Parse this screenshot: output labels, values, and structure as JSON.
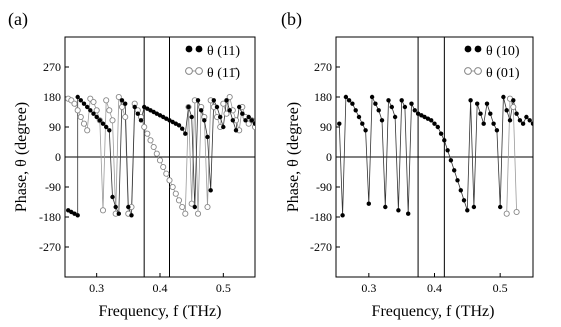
{
  "figure": {
    "panels": [
      "(a)",
      "(b)"
    ]
  },
  "chart_data": [
    {
      "type": "scatter",
      "panel": "(a)",
      "xlabel": "Frequency, f (THz)",
      "ylabel": "Phase, θ (degree)",
      "xlim": [
        0.25,
        0.55
      ],
      "ylim": [
        -360,
        360
      ],
      "xticks": [
        "0.3",
        "0.4",
        "0.5"
      ],
      "yticks": [
        "270",
        "180",
        "90",
        "0",
        "-90",
        "-180",
        "-270"
      ],
      "vlines": [
        0.375,
        0.415
      ],
      "legend": {
        "position": "top-right",
        "entries": [
          "θ (11)",
          "θ (11̄)"
        ]
      },
      "series": [
        {
          "name": "θ (11)",
          "marker": "filled",
          "x": [
            0.255,
            0.26,
            0.265,
            0.27,
            0.27,
            0.275,
            0.28,
            0.285,
            0.29,
            0.295,
            0.3,
            0.305,
            0.31,
            0.315,
            0.32,
            0.325,
            0.33,
            0.335,
            0.34,
            0.345,
            0.35,
            0.355,
            0.36,
            0.365,
            0.37,
            0.375,
            0.38,
            0.385,
            0.39,
            0.395,
            0.4,
            0.405,
            0.41,
            0.415,
            0.42,
            0.425,
            0.43,
            0.435,
            0.44,
            0.445,
            0.45,
            0.455,
            0.46,
            0.465,
            0.47,
            0.475,
            0.48,
            0.485,
            0.49,
            0.495,
            0.5,
            0.505,
            0.51,
            0.515,
            0.52,
            0.525,
            0.53,
            0.535,
            0.54,
            0.545,
            0.55
          ],
          "y": [
            -160,
            -165,
            -170,
            -175,
            180,
            170,
            160,
            150,
            140,
            130,
            120,
            110,
            100,
            90,
            80,
            -120,
            -150,
            -170,
            170,
            160,
            -150,
            -175,
            150,
            130,
            110,
            150,
            145,
            140,
            135,
            130,
            125,
            120,
            115,
            110,
            105,
            100,
            95,
            85,
            70,
            150,
            120,
            -150,
            170,
            140,
            110,
            60,
            -100,
            170,
            150,
            120,
            90,
            170,
            140,
            110,
            80,
            150,
            130,
            110,
            120,
            110,
            100
          ]
        },
        {
          "name": "θ (11̄)",
          "marker": "open",
          "x": [
            0.255,
            0.26,
            0.265,
            0.27,
            0.275,
            0.28,
            0.285,
            0.29,
            0.295,
            0.3,
            0.305,
            0.31,
            0.315,
            0.32,
            0.325,
            0.33,
            0.335,
            0.34,
            0.345,
            0.35,
            0.355,
            0.36,
            0.365,
            0.37,
            0.375,
            0.38,
            0.385,
            0.39,
            0.395,
            0.4,
            0.405,
            0.41,
            0.415,
            0.42,
            0.425,
            0.43,
            0.435,
            0.44,
            0.445,
            0.45,
            0.455,
            0.46,
            0.465,
            0.47,
            0.475,
            0.48,
            0.485,
            0.49,
            0.495,
            0.5,
            0.505,
            0.51,
            0.515,
            0.52,
            0.525,
            0.53,
            0.535,
            0.54,
            0.545,
            0.55
          ],
          "y": [
            175,
            170,
            160,
            140,
            120,
            100,
            80,
            175,
            165,
            140,
            110,
            -160,
            170,
            140,
            110,
            -170,
            180,
            150,
            120,
            -170,
            -150,
            160,
            140,
            120,
            90,
            70,
            50,
            30,
            10,
            -10,
            -30,
            -50,
            -70,
            -90,
            -110,
            -130,
            -150,
            -170,
            150,
            -140,
            170,
            -170,
            150,
            120,
            -150,
            170,
            150,
            120,
            90,
            160,
            130,
            180,
            140,
            110,
            80,
            150,
            120,
            100,
            110,
            90
          ]
        }
      ]
    },
    {
      "type": "scatter",
      "panel": "(b)",
      "xlabel": "Frequency, f (THz)",
      "ylabel": "Phase, θ (degree)",
      "xlim": [
        0.25,
        0.55
      ],
      "ylim": [
        -360,
        360
      ],
      "xticks": [
        "0.3",
        "0.4",
        "0.5"
      ],
      "yticks": [
        "270",
        "180",
        "90",
        "0",
        "-90",
        "-180",
        "-270"
      ],
      "vlines": [
        0.375,
        0.415
      ],
      "legend": {
        "position": "top-right",
        "entries": [
          "θ (10)",
          "θ (01)"
        ]
      },
      "series": [
        {
          "name": "θ (10)",
          "marker": "filled",
          "x": [
            0.255,
            0.26,
            0.265,
            0.27,
            0.275,
            0.28,
            0.285,
            0.29,
            0.295,
            0.3,
            0.305,
            0.31,
            0.315,
            0.32,
            0.325,
            0.33,
            0.335,
            0.34,
            0.345,
            0.35,
            0.355,
            0.36,
            0.365,
            0.37,
            0.375,
            0.38,
            0.385,
            0.39,
            0.395,
            0.4,
            0.405,
            0.41,
            0.415,
            0.42,
            0.425,
            0.43,
            0.435,
            0.44,
            0.445,
            0.45,
            0.455,
            0.46,
            0.465,
            0.47,
            0.475,
            0.48,
            0.485,
            0.49,
            0.495,
            0.5,
            0.505,
            0.51,
            0.515,
            0.52,
            0.525,
            0.53,
            0.535,
            0.54,
            0.545,
            0.55
          ],
          "y": [
            100,
            -175,
            180,
            170,
            160,
            140,
            120,
            100,
            80,
            -140,
            180,
            160,
            140,
            110,
            -150,
            170,
            150,
            120,
            -160,
            170,
            150,
            -170,
            160,
            140,
            130,
            125,
            120,
            115,
            110,
            100,
            90,
            70,
            50,
            20,
            -10,
            -40,
            -70,
            -100,
            -130,
            -160,
            170,
            -150,
            160,
            130,
            100,
            160,
            130,
            100,
            80,
            -150,
            180,
            140,
            110,
            170,
            130,
            110,
            100,
            120,
            110,
            100
          ]
        },
        {
          "name": "θ (01)",
          "marker": "open",
          "x": [
            0.51,
            0.515,
            0.52,
            0.525
          ],
          "y": [
            -170,
            175,
            150,
            -165
          ]
        }
      ]
    }
  ]
}
